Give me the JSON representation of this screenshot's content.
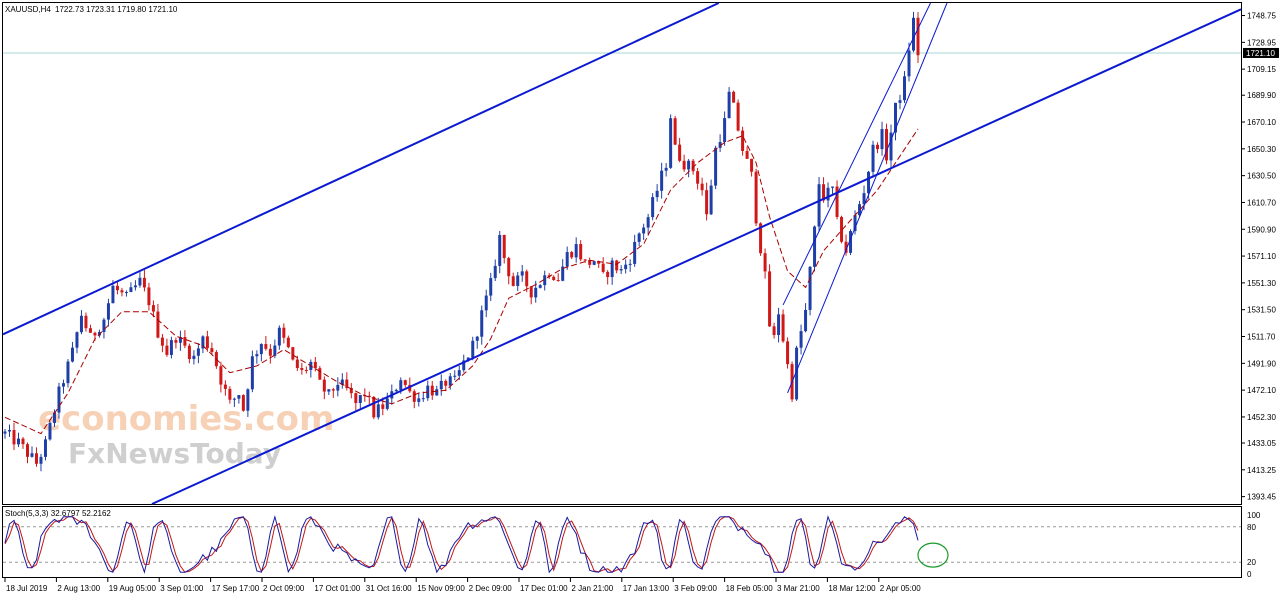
{
  "header": {
    "symbol": "XAUUSD,H4",
    "ohlc": "1722.73 1723.31 1719.80 1721.10"
  },
  "watermark": {
    "line1": "economies.com",
    "line2": "FxNewsToday"
  },
  "colors": {
    "bull": "#1f3fa8",
    "bear": "#d01818",
    "ma": "#a80000",
    "channel": "#0b1ad1",
    "hline": "#a7d7d7",
    "stoch_main": "#1a1aa0",
    "stoch_signal": "#c01818",
    "circle": "#1a9a2a"
  },
  "chart_data": [
    {
      "type": "candlestick",
      "title": "XAUUSD,H4",
      "price_label": "1721.10",
      "y_ticks": [
        "1748.75",
        "1728.95",
        "1709.15",
        "1689.90",
        "1670.10",
        "1650.30",
        "1630.50",
        "1610.70",
        "1590.90",
        "1571.10",
        "1551.30",
        "1531.50",
        "1511.70",
        "1491.90",
        "1472.10",
        "1452.30",
        "1433.05",
        "1413.25",
        "1393.45"
      ],
      "x_ticks": [
        "18 Jul 2019",
        "2 Aug 13:00",
        "19 Aug 05:00",
        "3 Sep 01:00",
        "17 Sep 17:00",
        "2 Oct 09:00",
        "17 Oct 01:00",
        "31 Oct 16:00",
        "15 Nov 09:00",
        "2 Dec 09:00",
        "17 Dec 01:00",
        "2 Jan 21:00",
        "17 Jan 13:00",
        "3 Feb 09:00",
        "18 Feb 05:00",
        "3 Mar 21:00",
        "18 Mar 12:00",
        "2 Apr 05:00"
      ],
      "ylim": [
        1388,
        1758
      ],
      "close_path": [
        [
          0,
          1440
        ],
        [
          3,
          1433
        ],
        [
          7,
          1418
        ],
        [
          9,
          1432
        ],
        [
          12,
          1470
        ],
        [
          15,
          1500
        ],
        [
          17,
          1528
        ],
        [
          19,
          1510
        ],
        [
          22,
          1525
        ],
        [
          24,
          1548
        ],
        [
          27,
          1540
        ],
        [
          30,
          1552
        ],
        [
          32,
          1538
        ],
        [
          34,
          1515
        ],
        [
          36,
          1500
        ],
        [
          38,
          1512
        ],
        [
          40,
          1504
        ],
        [
          42,
          1496
        ],
        [
          44,
          1510
        ],
        [
          46,
          1502
        ],
        [
          48,
          1480
        ],
        [
          50,
          1462
        ],
        [
          52,
          1470
        ],
        [
          53,
          1458
        ],
        [
          55,
          1495
        ],
        [
          57,
          1508
        ],
        [
          59,
          1500
        ],
        [
          61,
          1515
        ],
        [
          63,
          1502
        ],
        [
          64,
          1492
        ],
        [
          66,
          1485
        ],
        [
          68,
          1492
        ],
        [
          70,
          1476
        ],
        [
          72,
          1468
        ],
        [
          74,
          1478
        ],
        [
          76,
          1472
        ],
        [
          78,
          1462
        ],
        [
          80,
          1470
        ],
        [
          82,
          1455
        ],
        [
          84,
          1460
        ],
        [
          86,
          1468
        ],
        [
          88,
          1482
        ],
        [
          90,
          1470
        ],
        [
          92,
          1466
        ],
        [
          94,
          1474
        ],
        [
          96,
          1470
        ],
        [
          98,
          1478
        ],
        [
          100,
          1478
        ],
        [
          102,
          1492
        ],
        [
          104,
          1505
        ],
        [
          106,
          1528
        ],
        [
          108,
          1550
        ],
        [
          110,
          1585
        ],
        [
          111,
          1570
        ],
        [
          113,
          1550
        ],
        [
          115,
          1555
        ],
        [
          117,
          1545
        ],
        [
          119,
          1552
        ],
        [
          121,
          1560
        ],
        [
          123,
          1555
        ],
        [
          125,
          1572
        ],
        [
          127,
          1578
        ],
        [
          129,
          1565
        ],
        [
          131,
          1568
        ],
        [
          133,
          1555
        ],
        [
          135,
          1565
        ],
        [
          137,
          1560
        ],
        [
          139,
          1570
        ],
        [
          141,
          1588
        ],
        [
          143,
          1600
        ],
        [
          145,
          1620
        ],
        [
          147,
          1640
        ],
        [
          148,
          1675
        ],
        [
          149,
          1650
        ],
        [
          151,
          1640
        ],
        [
          153,
          1635
        ],
        [
          155,
          1620
        ],
        [
          156,
          1600
        ],
        [
          158,
          1650
        ],
        [
          160,
          1670
        ],
        [
          161,
          1690
        ],
        [
          162,
          1680
        ],
        [
          164,
          1650
        ],
        [
          166,
          1630
        ],
        [
          167,
          1600
        ],
        [
          169,
          1555
        ],
        [
          170,
          1520
        ],
        [
          171,
          1510
        ],
        [
          172,
          1530
        ],
        [
          174,
          1490
        ],
        [
          175,
          1470
        ],
        [
          176,
          1500
        ],
        [
          178,
          1530
        ],
        [
          180,
          1590
        ],
        [
          181,
          1625
        ],
        [
          182,
          1615
        ],
        [
          184,
          1620
        ],
        [
          185,
          1595
        ],
        [
          187,
          1575
        ],
        [
          189,
          1600
        ],
        [
          191,
          1620
        ],
        [
          193,
          1650
        ],
        [
          195,
          1660
        ],
        [
          196,
          1645
        ],
        [
          198,
          1680
        ],
        [
          200,
          1700
        ],
        [
          201,
          1725
        ],
        [
          202,
          1745
        ],
        [
          203,
          1721
        ]
      ],
      "ma_path": [
        [
          0,
          1452
        ],
        [
          8,
          1440
        ],
        [
          14,
          1470
        ],
        [
          20,
          1510
        ],
        [
          26,
          1530
        ],
        [
          32,
          1530
        ],
        [
          38,
          1512
        ],
        [
          44,
          1505
        ],
        [
          50,
          1485
        ],
        [
          56,
          1490
        ],
        [
          62,
          1502
        ],
        [
          68,
          1490
        ],
        [
          74,
          1478
        ],
        [
          80,
          1468
        ],
        [
          86,
          1462
        ],
        [
          92,
          1470
        ],
        [
          98,
          1472
        ],
        [
          104,
          1490
        ],
        [
          108,
          1510
        ],
        [
          112,
          1540
        ],
        [
          118,
          1550
        ],
        [
          124,
          1562
        ],
        [
          130,
          1568
        ],
        [
          136,
          1565
        ],
        [
          142,
          1580
        ],
        [
          148,
          1620
        ],
        [
          154,
          1640
        ],
        [
          160,
          1655
        ],
        [
          164,
          1660
        ],
        [
          167,
          1640
        ],
        [
          170,
          1600
        ],
        [
          174,
          1560
        ],
        [
          178,
          1548
        ],
        [
          182,
          1575
        ],
        [
          186,
          1590
        ],
        [
          190,
          1605
        ],
        [
          194,
          1620
        ],
        [
          198,
          1640
        ],
        [
          203,
          1665
        ]
      ]
    },
    {
      "type": "line",
      "title": "Stoch(5,3,3) 32.6797 52.2162",
      "y_ticks": [
        "100",
        "80",
        "20",
        "0"
      ],
      "levels": [
        80,
        20
      ],
      "ylim": [
        0,
        100
      ]
    }
  ]
}
